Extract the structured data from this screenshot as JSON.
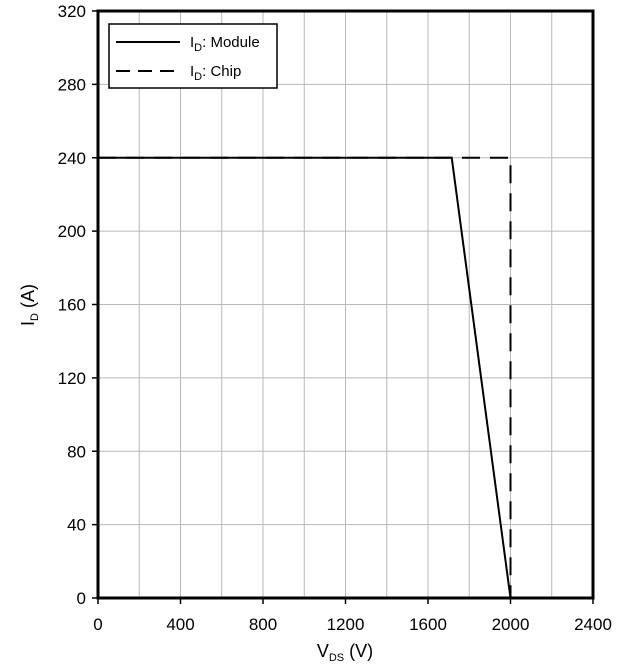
{
  "chart_data": {
    "type": "line",
    "xlabel": {
      "main": "V",
      "sub": "DS",
      "unit": " (V)"
    },
    "ylabel": {
      "main": "I",
      "sub": "D",
      "unit": " (A)"
    },
    "xlim": [
      0,
      2400
    ],
    "ylim": [
      0,
      320
    ],
    "xticks": [
      0,
      400,
      800,
      1200,
      1600,
      2000,
      2400
    ],
    "yticks": [
      0,
      40,
      80,
      120,
      160,
      200,
      240,
      280,
      320
    ],
    "x_tick_labels": [
      "0",
      "400",
      "800",
      "1200",
      "1600",
      "2000",
      "2400"
    ],
    "y_tick_labels": [
      "0",
      "40",
      "80",
      "120",
      "160",
      "200",
      "240",
      "280",
      "320"
    ],
    "x_minor_step": 200,
    "grid": true,
    "legend_position": "top-left",
    "series": [
      {
        "name": "ID: Module",
        "label": {
          "main": "I",
          "sub": "D",
          "rest": ": Module"
        },
        "style": "solid",
        "color": "#000000",
        "points": [
          [
            0,
            240
          ],
          [
            1715,
            240
          ],
          [
            2000,
            0
          ]
        ]
      },
      {
        "name": "ID: Chip",
        "label": {
          "main": "I",
          "sub": "D",
          "rest": ": Chip"
        },
        "style": "dashed",
        "color": "#000000",
        "points": [
          [
            0,
            240
          ],
          [
            2000,
            240
          ],
          [
            2000,
            0
          ]
        ]
      }
    ]
  }
}
